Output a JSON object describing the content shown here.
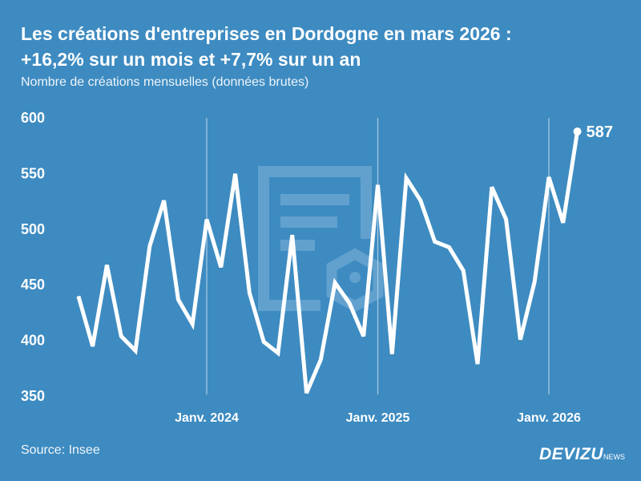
{
  "header": {
    "title_line1": "Les créations d'entreprises en Dordogne en mars 2026 :",
    "title_line2": "+16,2% sur un mois et +7,7% sur un an",
    "subtitle": "Nombre de créations mensuelles (données brutes)"
  },
  "footer": {
    "source": "Source: Insee",
    "logo_main": "DEVIZU",
    "logo_sub": "NEWS"
  },
  "colors": {
    "background": "#3d8bc1",
    "line": "#ffffff",
    "gridline": "#a9cbe3"
  },
  "chart_data": {
    "type": "line",
    "title": "Les créations d'entreprises en Dordogne en mars 2026 : +16,2% sur un mois et +7,7% sur un an",
    "ylabel": "",
    "xlabel": "",
    "ylim": [
      350,
      600
    ],
    "yticks": [
      350,
      400,
      450,
      500,
      550,
      600
    ],
    "xtick_labels": [
      {
        "label": "Janv. 2024",
        "x": "2024-01"
      },
      {
        "label": "Janv. 2025",
        "x": "2025-01"
      },
      {
        "label": "Janv. 2026",
        "x": "2026-01"
      }
    ],
    "grid": "vertical lines at January",
    "x": [
      "2023-04",
      "2023-05",
      "2023-06",
      "2023-07",
      "2023-08",
      "2023-09",
      "2023-10",
      "2023-11",
      "2023-12",
      "2024-01",
      "2024-02",
      "2024-03",
      "2024-04",
      "2024-05",
      "2024-06",
      "2024-07",
      "2024-08",
      "2024-09",
      "2024-10",
      "2024-11",
      "2024-12",
      "2025-01",
      "2025-02",
      "2025-03",
      "2025-04",
      "2025-05",
      "2025-06",
      "2025-07",
      "2025-08",
      "2025-09",
      "2025-10",
      "2025-11",
      "2025-12",
      "2026-01",
      "2026-02",
      "2026-03"
    ],
    "values": [
      439,
      394,
      467,
      403,
      390,
      484,
      525,
      436,
      414,
      508,
      465,
      549,
      442,
      398,
      388,
      494,
      352,
      382,
      451,
      433,
      403,
      539,
      387,
      545,
      525,
      488,
      483,
      462,
      378,
      537,
      508,
      400,
      452,
      546,
      505,
      587
    ],
    "last_label": "587"
  }
}
